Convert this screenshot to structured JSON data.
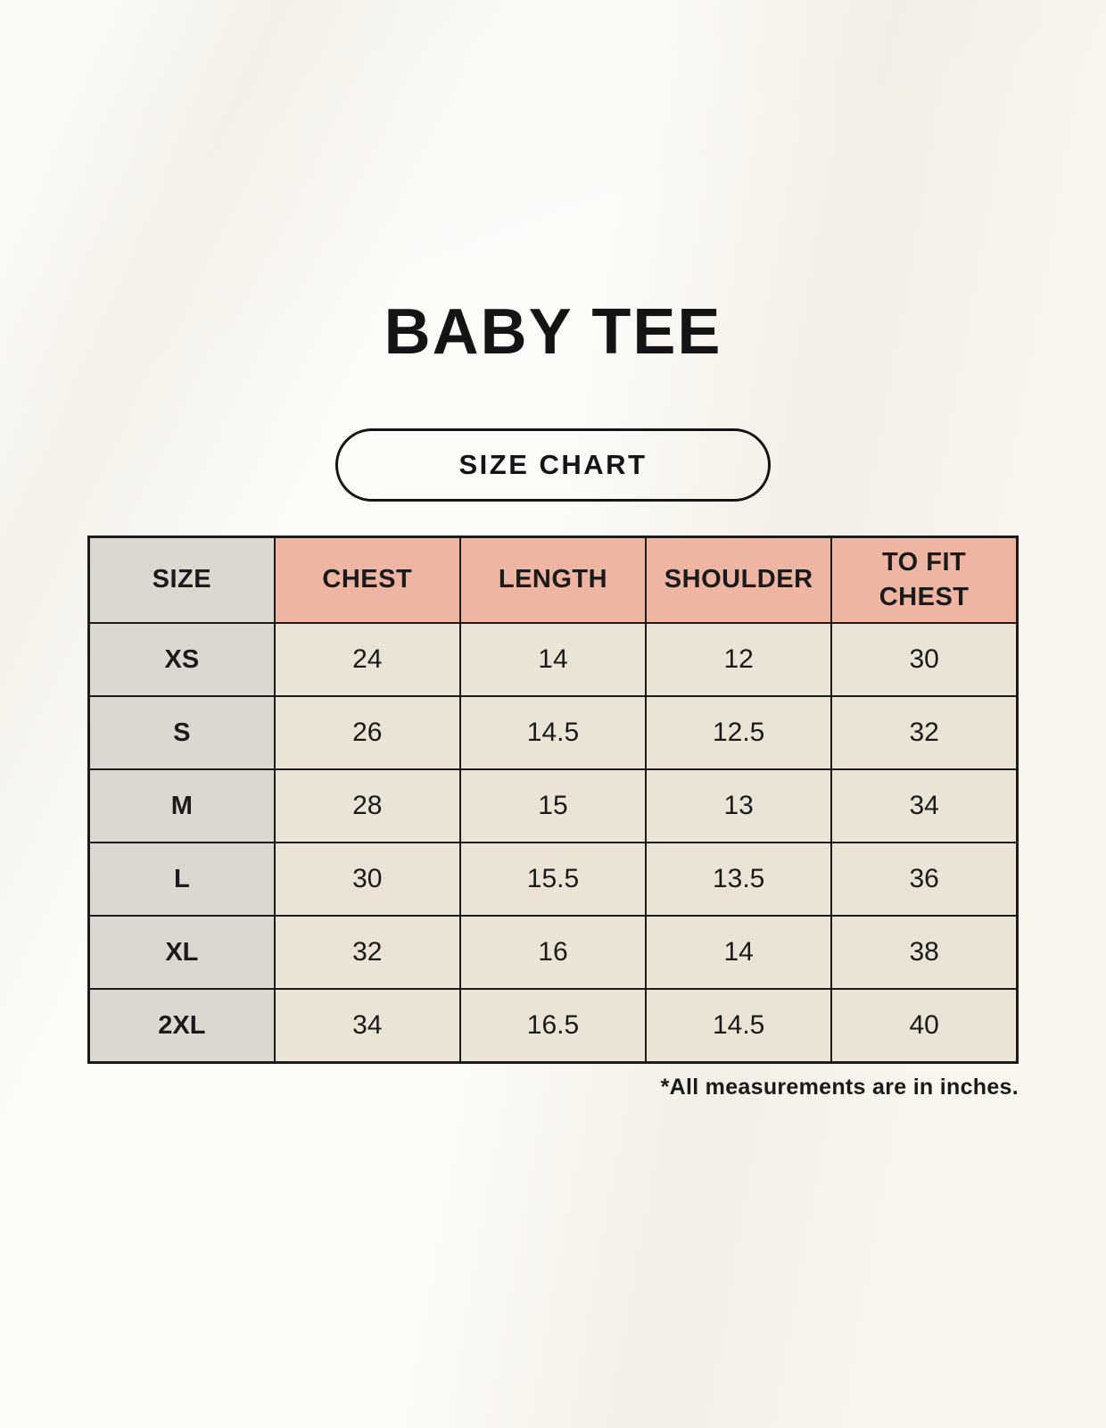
{
  "chart_data": {
    "type": "table",
    "title": "BABY TEE",
    "badge_label": "SIZE CHART",
    "columns": [
      "SIZE",
      "CHEST",
      "LENGTH",
      "SHOULDER",
      "TO FIT CHEST"
    ],
    "rows": [
      [
        "XS",
        "24",
        "14",
        "12",
        "30"
      ],
      [
        "S",
        "26",
        "14.5",
        "12.5",
        "32"
      ],
      [
        "M",
        "28",
        "15",
        "13",
        "34"
      ],
      [
        "L",
        "30",
        "15.5",
        "13.5",
        "36"
      ],
      [
        "XL",
        "32",
        "16",
        "14",
        "38"
      ],
      [
        "2XL",
        "34",
        "16.5",
        "14.5",
        "40"
      ]
    ],
    "footnote": "*All measurements are in inches.",
    "units": "inches"
  },
  "colors": {
    "background": "#f9f6ef",
    "header_pink": "#efb5a3",
    "size_column_gray": "#ddd7d2",
    "cell_cream": "#eae3d6",
    "border_and_text": "#1a1a1a"
  }
}
